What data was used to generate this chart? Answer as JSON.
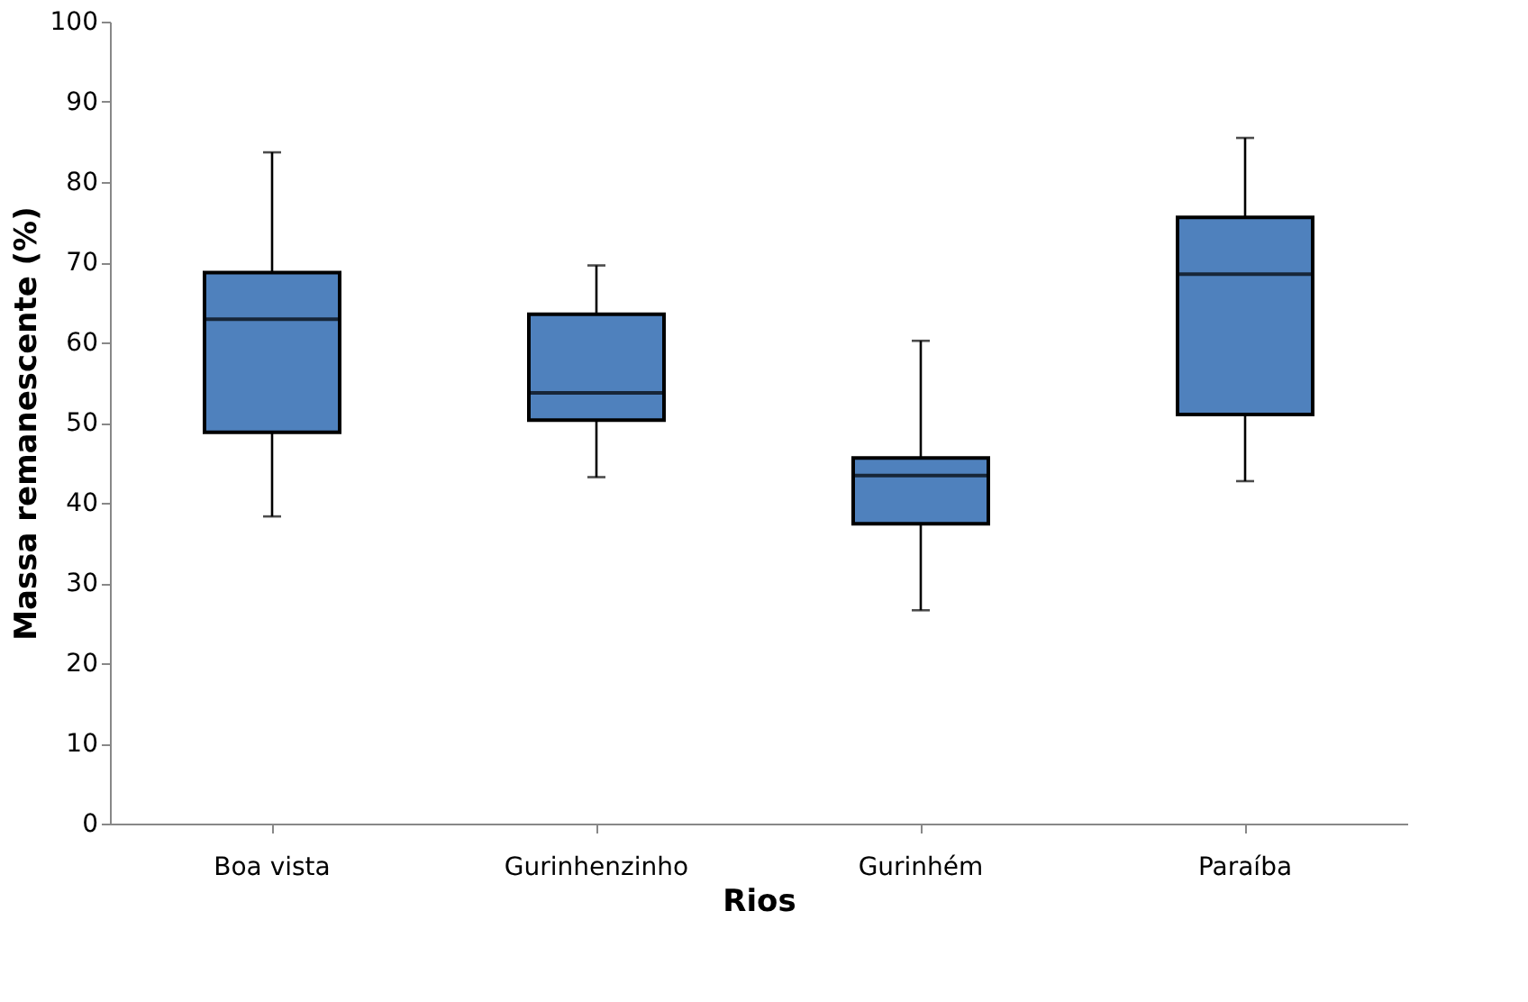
{
  "chart_data": {
    "type": "box",
    "xlabel": "Rios",
    "ylabel": "Massa remanescente (%)",
    "categories": [
      "Boa vista",
      "Gurinhenzinho",
      "Gurinhém",
      "Paraíba"
    ],
    "boxes": [
      {
        "low": 38.3,
        "q1": 48.8,
        "median": 62.9,
        "q3": 68.7,
        "high": 83.7
      },
      {
        "low": 43.2,
        "q1": 50.3,
        "median": 53.7,
        "q3": 63.5,
        "high": 69.6
      },
      {
        "low": 26.6,
        "q1": 37.4,
        "median": 43.4,
        "q3": 45.6,
        "high": 60.2
      },
      {
        "low": 42.7,
        "q1": 51.0,
        "median": 68.5,
        "q3": 75.6,
        "high": 85.5
      }
    ],
    "color": "#4f81bd",
    "ylim": [
      0,
      100
    ],
    "yticks": [
      0,
      10,
      20,
      30,
      40,
      50,
      60,
      70,
      80,
      90,
      100
    ],
    "grid": false
  }
}
